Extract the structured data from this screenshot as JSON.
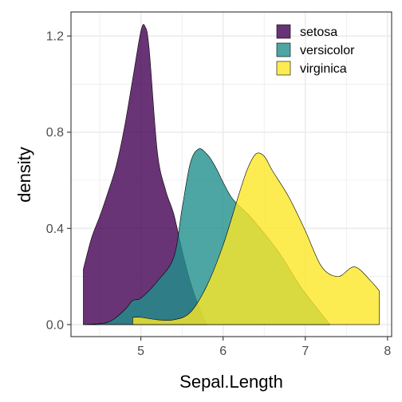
{
  "chart_data": {
    "type": "area",
    "subtype": "density",
    "title": "",
    "xlabel": "Sepal.Length",
    "ylabel": "density",
    "xlim": [
      4.15,
      8.05
    ],
    "ylim": [
      -0.05,
      1.3
    ],
    "x_ticks": [
      5,
      6,
      7,
      8
    ],
    "x_tick_labels": [
      "5",
      "6",
      "7",
      "8"
    ],
    "y_ticks": [
      0.0,
      0.4,
      0.8,
      1.2
    ],
    "y_tick_labels": [
      "0.0",
      "0.4",
      "0.8",
      "1.2"
    ],
    "grid": true,
    "legend_position": "top-right",
    "series": [
      {
        "name": "setosa",
        "color": "#440154",
        "x": [
          4.3,
          4.4,
          4.5,
          4.6,
          4.7,
          4.8,
          4.9,
          5.0,
          5.05,
          5.1,
          5.2,
          5.3,
          5.4,
          5.5,
          5.6,
          5.7,
          5.8
        ],
        "values": [
          0.23,
          0.36,
          0.45,
          0.55,
          0.66,
          0.82,
          1.02,
          1.22,
          1.24,
          1.15,
          0.72,
          0.56,
          0.46,
          0.31,
          0.18,
          0.08,
          0.0
        ]
      },
      {
        "name": "versicolor",
        "color": "#21908C",
        "x": [
          4.3,
          4.6,
          4.8,
          4.9,
          5.0,
          5.2,
          5.4,
          5.5,
          5.6,
          5.7,
          5.8,
          5.9,
          6.1,
          6.3,
          6.5,
          6.7,
          6.9,
          7.0,
          7.3
        ],
        "values": [
          0.0,
          0.01,
          0.06,
          0.1,
          0.11,
          0.18,
          0.28,
          0.48,
          0.67,
          0.73,
          0.71,
          0.66,
          0.53,
          0.46,
          0.38,
          0.29,
          0.18,
          0.13,
          0.0
        ]
      },
      {
        "name": "virginica",
        "color": "#FDE725",
        "x": [
          4.9,
          5.0,
          5.2,
          5.4,
          5.6,
          5.8,
          6.0,
          6.2,
          6.3,
          6.4,
          6.5,
          6.6,
          6.8,
          7.0,
          7.2,
          7.4,
          7.6,
          7.8,
          7.9
        ],
        "values": [
          0.03,
          0.03,
          0.02,
          0.02,
          0.05,
          0.16,
          0.33,
          0.55,
          0.65,
          0.71,
          0.7,
          0.64,
          0.53,
          0.39,
          0.24,
          0.2,
          0.24,
          0.18,
          0.14
        ]
      }
    ]
  }
}
